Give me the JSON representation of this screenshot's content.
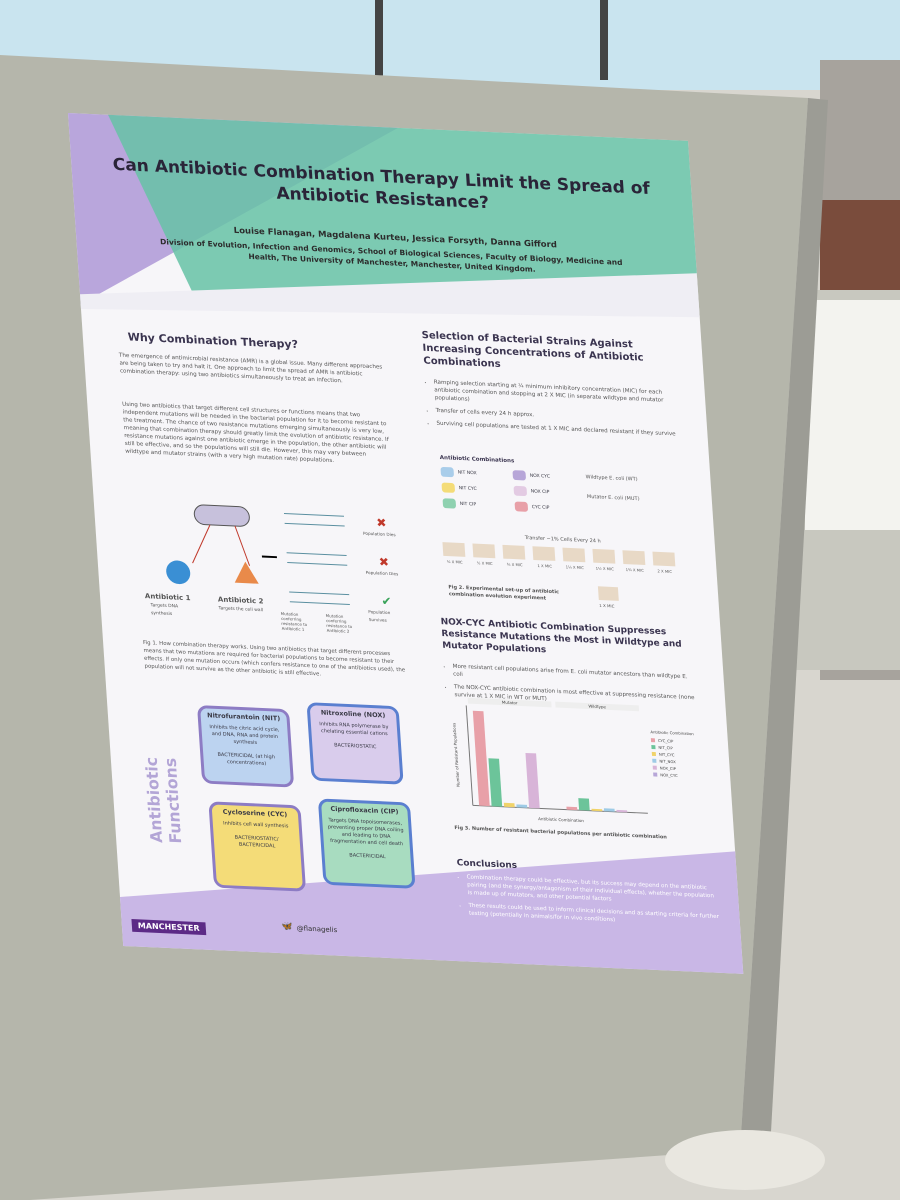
{
  "poster": {
    "title": "Can Antibiotic Combination Therapy Limit the Spread of Antibiotic Resistance?",
    "authors": "Louise Flanagan, Magdalena Kurteu, Jessica Forsyth, Danna Gifford",
    "affiliation": "Division of Evolution, Infection and Genomics, School of Biological Sciences, Faculty of Biology, Medicine and Health, The University of Manchester, Manchester, United Kingdom.",
    "why": {
      "heading": "Why Combination Therapy?",
      "paragraphs": [
        "The emergence of antimicrobial resistance (AMR) is a global issue. Many different approaches are being taken to try and halt it. One approach to limit the spread of AMR is antibiotic combination therapy: using two antibiotics simultaneously to treat an infection.",
        "Using two antibiotics that target different cell structures or functions means that two independent mutations will be needed in the bacterial population for it to become resistant to the treatment. The chance of two resistance mutations emerging simultaneously is very low, meaning that combination therapy should greatly limit the evolution of antibiotic resistance. If resistance mutations against one antibiotic emerge in the population, the other antibiotic will still be effective, and so the populations will still die. However, this may vary between wildtype and mutator strains (with a very high mutation rate) populations."
      ]
    },
    "figure1": {
      "antibiotic1": "Antibiotic 1",
      "antibiotic1_target": "Targets DNA synthesis",
      "antibiotic2": "Antibiotic 2",
      "antibiotic2_target": "Targets the cell wall",
      "outcomes": [
        "Population Dies",
        "Population Dies",
        "Population Survives"
      ],
      "mutation1": "Mutation conferring resistance to Antibiotic 1",
      "mutation2": "Mutation conferring resistance to Antibiotic 2",
      "caption": "Fig 1. How combination therapy works. Using two antibiotics that target different processes means that two mutations are required for bacterial populations to become resistant to their effects. If only one mutation occurs (which confers resistance to one of the antibiotics used), the population will not survive as the other antibiotic is still effective."
    },
    "functions": {
      "label": "Antibiotic Functions",
      "boxes": [
        {
          "name": "Nitrofurantoin (NIT)",
          "text": "Inhibits the citric acid cycle, and DNA, RNA and protein synthesis",
          "kind": "BACTERICIDAL (at high concentrations)"
        },
        {
          "name": "Nitroxoline (NOX)",
          "text": "Inhibits RNA polymerase by chelating essential cations",
          "kind": "BACTERIOSTATIC"
        },
        {
          "name": "Cycloserine (CYC)",
          "text": "Inhibits cell wall synthesis",
          "kind": "BACTERIOSTATIC/ BACTERICIDAL"
        },
        {
          "name": "Ciprofloxacin (CIP)",
          "text": "Targets DNA topoisomerases, preventing proper DNA coiling and leading to DNA fragmentation and cell death",
          "kind": "BACTERICIDAL"
        }
      ]
    },
    "selection": {
      "heading": "Selection of Bacterial Strains Against Increasing Concentrations of Antibiotic Combinations",
      "bullets": [
        "Ramping selection starting at ¼ minimum inhibitory concentration (MIC) for each antibiotic combination and stopping at 2 X MIC (in separate wildtype and mutator populations)",
        "Transfer of cells every 24 h approx.",
        "Surviving cell populations are tested at 1 X MIC and declared resistant if they survive"
      ],
      "combinations_title": "Antibiotic Combinations",
      "combinations": [
        "NIT NOX",
        "NOX CYC",
        "NIT CYC",
        "NOX CIP",
        "NIT CIP",
        "CYC CIP"
      ],
      "strains": [
        "Wildtype E. coli (WT)",
        "Mutator E. coli (MUT)"
      ],
      "transfer": "Transfer ~1% Cells Every 24 h",
      "mic_labels": [
        "¼ X MIC",
        "½ X MIC",
        "¾ X MIC",
        "1 X MIC",
        "1¼ X MIC",
        "1½ X MIC",
        "1¾ X MIC",
        "2 X MIC"
      ],
      "test_label": "1 X MIC",
      "caption": "Fig 2. Experimental set-up of antibiotic combination evolution experiment"
    },
    "results": {
      "heading": "NOX-CYC Antibiotic Combination Suppresses Resistance Mutations the Most in Wildtype and Mutator Populations",
      "bullets": [
        "More resistant cell populations arise from E. coli mutator ancestors than wildtype E. coli",
        "The NOX-CYC antibiotic combination is most effective at suppressing resistance (none survive at 1 X MIC in WT or MUT)"
      ],
      "chart": {
        "type": "bar",
        "groups": [
          "Mutator",
          "Wildtype"
        ],
        "ylabel": "Number of Resistant Populations",
        "xlabel": "Antibiotic Combination",
        "legend_title": "Antibiotic Combination",
        "ylim": [
          0,
          10
        ],
        "series": [
          {
            "name": "CYC_CIP",
            "color": "#e8a0a8",
            "values": [
              9.5,
              0.3
            ]
          },
          {
            "name": "NIT_CIP",
            "color": "#6cc49a",
            "values": [
              4.8,
              1.2
            ]
          },
          {
            "name": "NIT_CYC",
            "color": "#f0d36a",
            "values": [
              0.4,
              0.2
            ]
          },
          {
            "name": "NIT_NOX",
            "color": "#9ecbe6",
            "values": [
              0.3,
              0.3
            ]
          },
          {
            "name": "NOX_CIP",
            "color": "#d8b4d8",
            "values": [
              5.5,
              0.2
            ]
          },
          {
            "name": "NOX_CYC",
            "color": "#b7a6d8",
            "values": [
              0,
              0
            ]
          }
        ]
      },
      "caption": "Fig 3. Number of resistant bacterial populations per antibiotic combination"
    },
    "conclusions": {
      "heading": "Conclusions",
      "bullets": [
        "Combination therapy could be effective, but its success may depend on the antibiotic pairing (and the synergy/antagonism of their individual effects), whether the population is made up of mutators, and other potential factors",
        "These results could be used to inform clinical decisions and as starting criteria for further testing (potentially in animals/for in vivo conditions)"
      ]
    },
    "logo": "MANCHESTER",
    "handle": "@flanagelis"
  }
}
